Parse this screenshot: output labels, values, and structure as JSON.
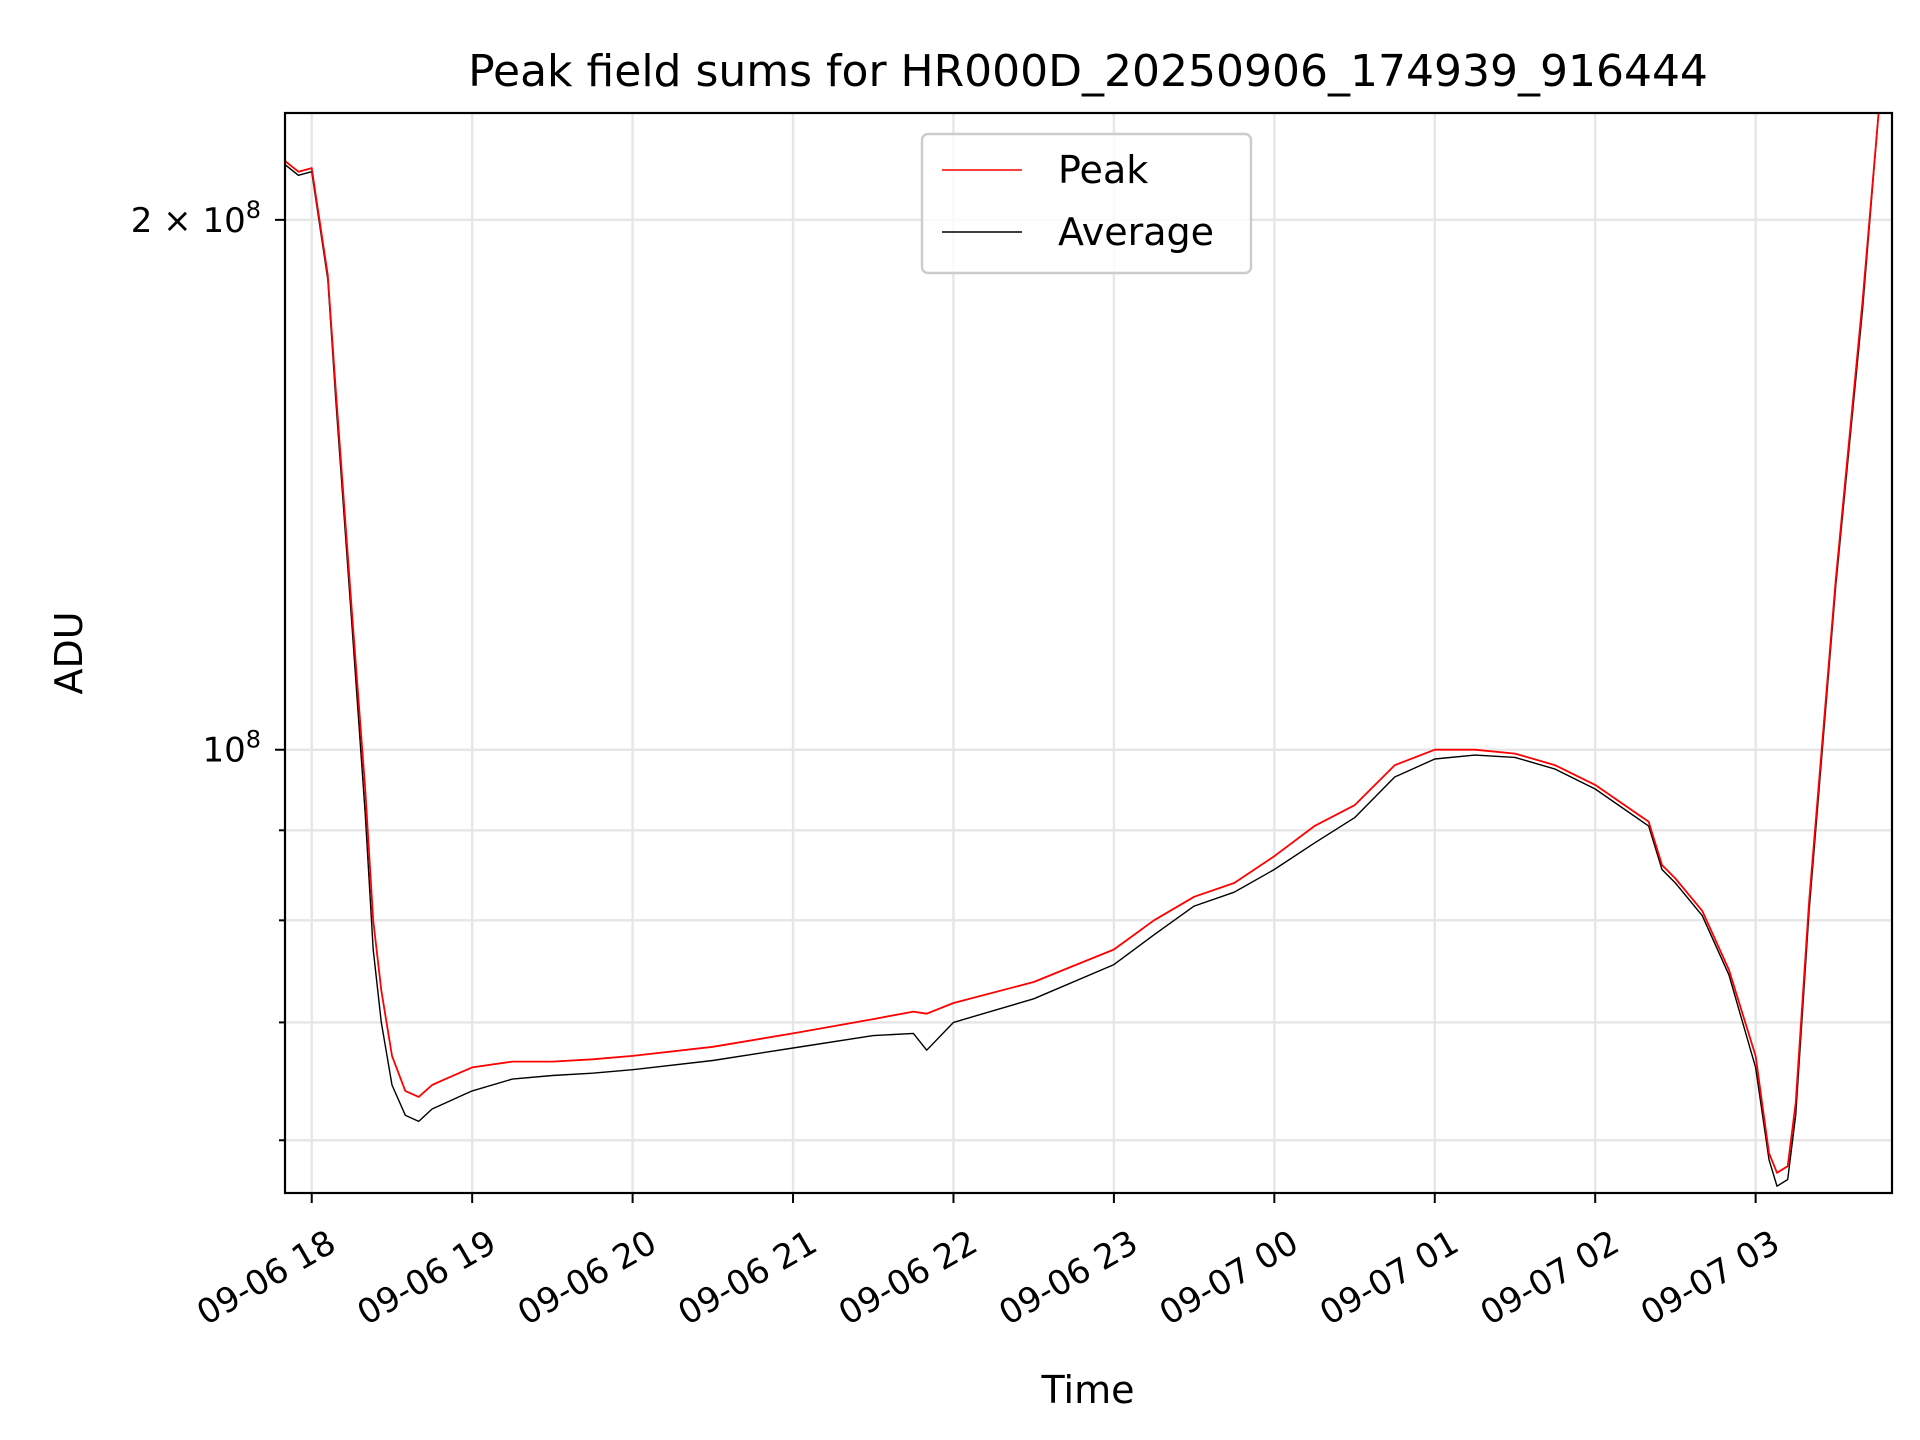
{
  "chart_data": {
    "type": "line",
    "title": "Peak field sums for HR000D_20250906_174939_916444",
    "xlabel": "Time",
    "ylabel": "ADU",
    "y_scale": "log",
    "ylim": [
      56000000,
      230000000
    ],
    "xlim": [
      "2025-09-06 17:50",
      "2025-09-07 03:51"
    ],
    "grid": true,
    "legend_position": "top-center",
    "x_tick_labels": [
      "09-06 18",
      "09-06 19",
      "09-06 20",
      "09-06 21",
      "09-06 22",
      "09-06 23",
      "09-07 00",
      "09-07 01",
      "09-07 02",
      "09-07 03"
    ],
    "y_tick_labels": [
      {
        "value": 200000000,
        "label": "2 × 10",
        "exponent": "8"
      },
      {
        "value": 100000000,
        "label": "10",
        "exponent": "8"
      }
    ],
    "series": [
      {
        "name": "Peak",
        "color": "#ff0000",
        "x": [
          "2025-09-06 17:50",
          "2025-09-06 17:55",
          "2025-09-06 18:00",
          "2025-09-06 18:06",
          "2025-09-06 18:09",
          "2025-09-06 18:15",
          "2025-09-06 18:20",
          "2025-09-06 18:23",
          "2025-09-06 18:26",
          "2025-09-06 18:30",
          "2025-09-06 18:35",
          "2025-09-06 18:40",
          "2025-09-06 18:45",
          "2025-09-06 18:50",
          "2025-09-06 18:55",
          "2025-09-06 19:00",
          "2025-09-06 19:15",
          "2025-09-06 19:30",
          "2025-09-06 19:45",
          "2025-09-06 20:00",
          "2025-09-06 20:30",
          "2025-09-06 21:00",
          "2025-09-06 21:30",
          "2025-09-06 21:45",
          "2025-09-06 21:50",
          "2025-09-06 22:00",
          "2025-09-06 22:30",
          "2025-09-06 23:00",
          "2025-09-06 23:15",
          "2025-09-06 23:30",
          "2025-09-06 23:45",
          "2025-09-07 00:00",
          "2025-09-07 00:15",
          "2025-09-07 00:30",
          "2025-09-07 00:45",
          "2025-09-07 01:00",
          "2025-09-07 01:15",
          "2025-09-07 01:30",
          "2025-09-07 01:45",
          "2025-09-07 02:00",
          "2025-09-07 02:20",
          "2025-09-07 02:25",
          "2025-09-07 02:30",
          "2025-09-07 02:40",
          "2025-09-07 02:50",
          "2025-09-07 03:00",
          "2025-09-07 03:05",
          "2025-09-07 03:08",
          "2025-09-07 03:12",
          "2025-09-07 03:15",
          "2025-09-07 03:20",
          "2025-09-07 03:30",
          "2025-09-07 03:40",
          "2025-09-07 03:46"
        ],
        "values": [
          216000000,
          213000000,
          214000000,
          186000000,
          160000000,
          120000000,
          95000000,
          80000000,
          73000000,
          67000000,
          64000000,
          63500000,
          64500000,
          65000000,
          65500000,
          66000000,
          66500000,
          66500000,
          66700000,
          67000000,
          67800000,
          69000000,
          70300000,
          71000000,
          70800000,
          71800000,
          73800000,
          77000000,
          80000000,
          82500000,
          84000000,
          87000000,
          90500000,
          93000000,
          98000000,
          100000000,
          100000000,
          99500000,
          98000000,
          95500000,
          91000000,
          86000000,
          84500000,
          81000000,
          75000000,
          67000000,
          59000000,
          57500000,
          58000000,
          63000000,
          82000000,
          125000000,
          180000000,
          230000000
        ]
      },
      {
        "name": "Average",
        "color": "#000000",
        "x": [
          "2025-09-06 17:50",
          "2025-09-06 17:55",
          "2025-09-06 18:00",
          "2025-09-06 18:06",
          "2025-09-06 18:09",
          "2025-09-06 18:15",
          "2025-09-06 18:20",
          "2025-09-06 18:23",
          "2025-09-06 18:26",
          "2025-09-06 18:30",
          "2025-09-06 18:35",
          "2025-09-06 18:40",
          "2025-09-06 18:45",
          "2025-09-06 18:50",
          "2025-09-06 18:55",
          "2025-09-06 19:00",
          "2025-09-06 19:15",
          "2025-09-06 19:30",
          "2025-09-06 19:45",
          "2025-09-06 20:00",
          "2025-09-06 20:30",
          "2025-09-06 21:00",
          "2025-09-06 21:30",
          "2025-09-06 21:45",
          "2025-09-06 21:50",
          "2025-09-06 22:00",
          "2025-09-06 22:30",
          "2025-09-06 23:00",
          "2025-09-06 23:15",
          "2025-09-06 23:30",
          "2025-09-06 23:45",
          "2025-09-07 00:00",
          "2025-09-07 00:15",
          "2025-09-07 00:30",
          "2025-09-07 00:45",
          "2025-09-07 01:00",
          "2025-09-07 01:15",
          "2025-09-07 01:30",
          "2025-09-07 01:45",
          "2025-09-07 02:00",
          "2025-09-07 02:20",
          "2025-09-07 02:25",
          "2025-09-07 02:30",
          "2025-09-07 02:40",
          "2025-09-07 02:50",
          "2025-09-07 03:00",
          "2025-09-07 03:05",
          "2025-09-07 03:08",
          "2025-09-07 03:12",
          "2025-09-07 03:15",
          "2025-09-07 03:20",
          "2025-09-07 03:30",
          "2025-09-07 03:40",
          "2025-09-07 03:46"
        ],
        "values": [
          215000000,
          212000000,
          213000000,
          185000000,
          158000000,
          118000000,
          92000000,
          77000000,
          70000000,
          64500000,
          62000000,
          61500000,
          62500000,
          63000000,
          63500000,
          64000000,
          65000000,
          65300000,
          65500000,
          65800000,
          66600000,
          67700000,
          68800000,
          69000000,
          67500000,
          70000000,
          72200000,
          75500000,
          78500000,
          81500000,
          83000000,
          85500000,
          88500000,
          91500000,
          96500000,
          98800000,
          99300000,
          99000000,
          97500000,
          95000000,
          90500000,
          85500000,
          84000000,
          80500000,
          74500000,
          66000000,
          58500000,
          56500000,
          57000000,
          62000000,
          81000000,
          124000000,
          178000000,
          230000000
        ]
      }
    ]
  }
}
